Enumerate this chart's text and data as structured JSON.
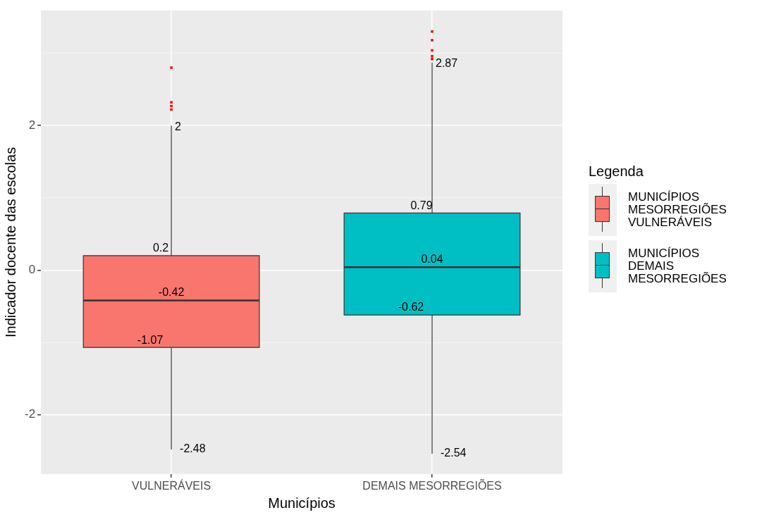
{
  "chart_data": {
    "type": "box",
    "xlabel": "Municípios",
    "ylabel": "Indicador docente das escolas",
    "legend_title": "Legenda",
    "categories": [
      "VULNERÁVEIS",
      "DEMAIS MESORREGIÕES"
    ],
    "ylim": [
      -2.82,
      3.59
    ],
    "yticks": [
      -2,
      {
        "value": -1,
        "label": null
      },
      0,
      {
        "value": 1,
        "label": null
      },
      2,
      {
        "value": 3,
        "label": null
      }
    ],
    "grid": true,
    "legend": "right",
    "annotations": [
      {
        "text": "2",
        "x": "VULNERÁVEIS",
        "y": 2
      },
      {
        "text": "0.2",
        "x": "VULNERÁVEIS",
        "y": 0.2
      },
      {
        "text": "-0.42",
        "x": "VULNERÁVEIS",
        "y": -0.42
      },
      {
        "text": "-1.07",
        "x": "VULNERÁVEIS",
        "y": -1.07
      },
      {
        "text": "-2.48",
        "x": "VULNERÁVEIS",
        "y": -2.48
      },
      {
        "text": "2.87",
        "x": "DEMAIS MESORREGIÕES",
        "y": 2.87
      },
      {
        "text": "0.79",
        "x": "DEMAIS MESORREGIÕES",
        "y": 0.79
      },
      {
        "text": "0.04",
        "x": "DEMAIS MESORREGIÕES",
        "y": 0.04
      },
      {
        "text": "-0.62",
        "x": "DEMAIS MESORREGIÕES",
        "y": -0.62
      },
      {
        "text": "-2.54",
        "x": "DEMAIS MESORREGIÕES",
        "y": -2.54
      }
    ],
    "series": [
      {
        "name": "MUNICÍPIOS MESORREGIÕES VULNERÁVEIS",
        "color": "#f8766d",
        "boxes": [
          {
            "low": -2.48,
            "q1": -1.07,
            "median": -0.42,
            "q3": 0.2,
            "high": 2
          },
          null
        ]
      },
      {
        "name": "MUNICÍPIOS DEMAIS MESORREGIÕES",
        "color": "#00bfc4",
        "boxes": [
          null,
          {
            "low": -2.54,
            "q1": -0.62,
            "median": 0.04,
            "q3": 0.79,
            "high": 2.87
          }
        ]
      },
      {
        "type": "scatter",
        "color": "#ff0000",
        "marker": "square",
        "x": [
          "VULNERÁVEIS",
          "VULNERÁVEIS",
          "VULNERÁVEIS",
          "VULNERÁVEIS",
          "DEMAIS MESORREGIÕES",
          "DEMAIS MESORREGIÕES",
          "DEMAIS MESORREGIÕES",
          "DEMAIS MESORREGIÕES",
          "DEMAIS MESORREGIÕES"
        ],
        "values": [
          2.8,
          2.32,
          2.27,
          2.22,
          3.3,
          3.18,
          3.04,
          2.96,
          2.92
        ]
      }
    ]
  }
}
